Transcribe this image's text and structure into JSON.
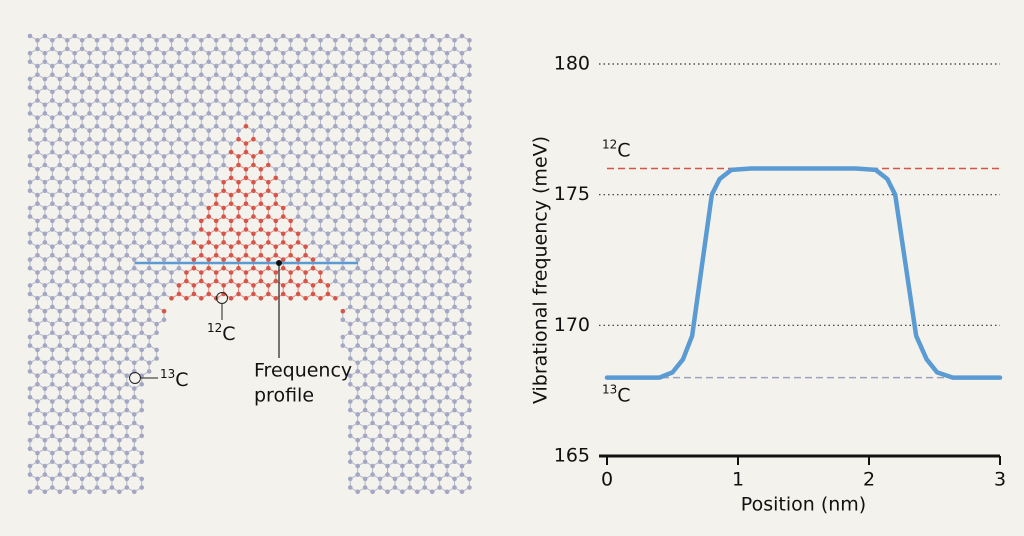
{
  "diagram": {
    "isotope_12": {
      "mass": "12",
      "symbol": "C"
    },
    "isotope_13": {
      "mass": "13",
      "symbol": "C"
    },
    "annotation": [
      "Frequency",
      "profile"
    ]
  },
  "chart_data": {
    "type": "line",
    "y_label": "Vibrational frequency (meV)",
    "x_label": "Position (nm)",
    "xlim": [
      0,
      3
    ],
    "xticks": [
      0,
      1,
      2,
      3
    ],
    "ylim": [
      165,
      180
    ],
    "yticks": [
      165,
      170,
      175,
      180
    ],
    "grid": true,
    "x": [
      0,
      0.4,
      0.5,
      0.58,
      0.65,
      0.8,
      0.86,
      0.95,
      1.1,
      1.9,
      2.05,
      2.14,
      2.2,
      2.36,
      2.44,
      2.52,
      2.64,
      3
    ],
    "series": [
      {
        "color": "#5b9bd3",
        "values": [
          168,
          168,
          168.2,
          168.7,
          169.6,
          175,
          175.6,
          175.95,
          176,
          176,
          175.95,
          175.6,
          175,
          169.6,
          168.7,
          168.2,
          168,
          168
        ]
      }
    ],
    "reference_lines": [
      {
        "value": 176,
        "color": "#d6554a",
        "mass": "12",
        "symbol": "C"
      },
      {
        "value": 168,
        "color": "#9ea2c2",
        "mass": "13",
        "symbol": "C"
      }
    ]
  }
}
